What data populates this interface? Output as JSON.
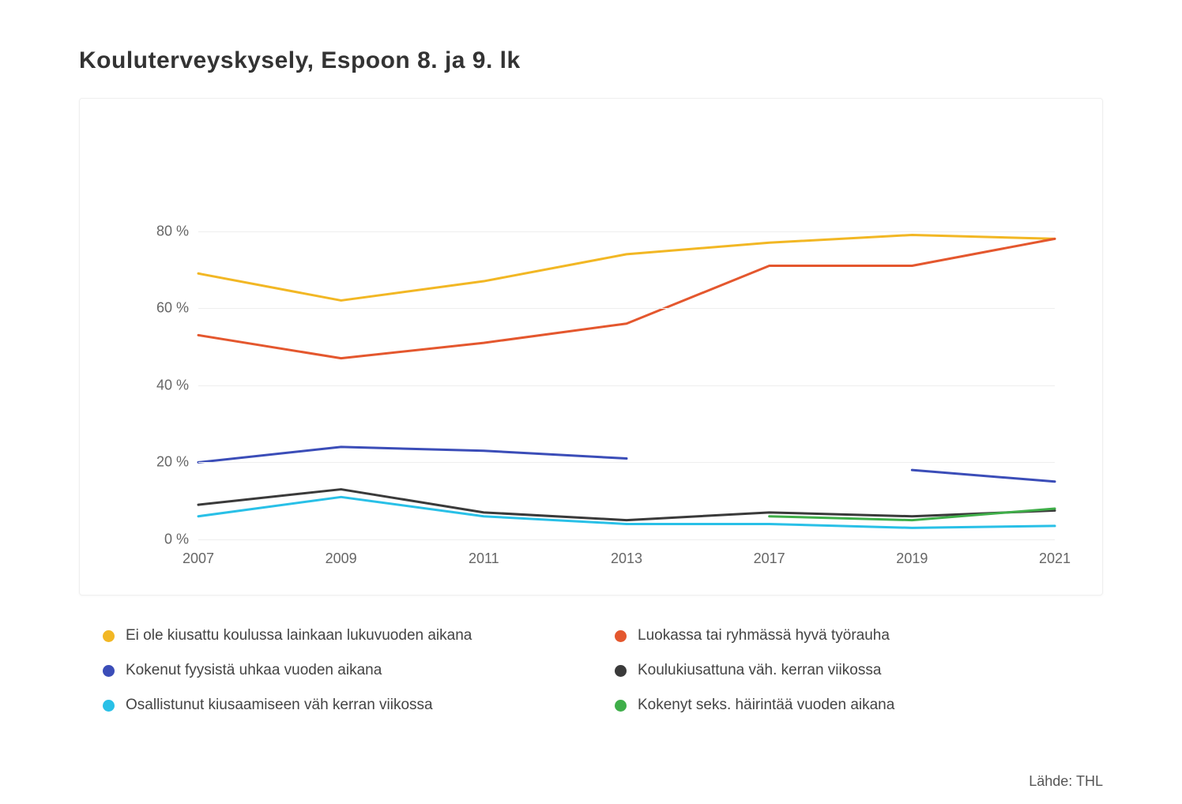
{
  "title": "Kouluterveyskysely, Espoon 8. ja 9. lk",
  "source_label": "Lähde: THL",
  "chart": {
    "type": "line",
    "background_color": "#ffffff",
    "grid_color": "#eeeeee",
    "axis_text_color": "#666666",
    "title_fontsize": 30,
    "label_fontsize": 18,
    "legend_fontsize": 19,
    "line_width": 3,
    "x_categories": [
      "2007",
      "2009",
      "2011",
      "2013",
      "2017",
      "2019",
      "2021"
    ],
    "ylim": [
      0,
      100
    ],
    "yticks": [
      0,
      20,
      40,
      60,
      80
    ],
    "ytick_labels": [
      "0 %",
      "20 %",
      "40 %",
      "60 %",
      "80 %"
    ],
    "series": [
      {
        "id": "ei_kiusattu",
        "label": "Ei ole kiusattu koulussa lainkaan lukuvuoden aikana",
        "color": "#f2b724",
        "values": [
          69,
          62,
          67,
          74,
          77,
          79,
          78
        ]
      },
      {
        "id": "tyorauha",
        "label": "Luokassa tai ryhmässä hyvä työrauha",
        "color": "#e4572e",
        "values": [
          53,
          47,
          51,
          56,
          71,
          71,
          78
        ]
      },
      {
        "id": "fyysinen_uhka",
        "label": "Kokenut fyysistä uhkaa vuoden aikana",
        "color": "#3b4db8",
        "values": [
          20,
          24,
          23,
          21,
          null,
          18,
          15
        ]
      },
      {
        "id": "koulukiusattu",
        "label": "Koulukiusattuna väh. kerran viikossa",
        "color": "#3a3a3a",
        "values": [
          9,
          13,
          7,
          5,
          7,
          6,
          7.5
        ]
      },
      {
        "id": "osallistunut_kiusaamiseen",
        "label": "Osallistunut kiusaamiseen väh kerran viikossa",
        "color": "#29c0e7",
        "values": [
          6,
          11,
          6,
          4,
          4,
          3,
          3.5
        ]
      },
      {
        "id": "seks_hairinta",
        "label": "Kokenyt seks. häirintää vuoden aikana",
        "color": "#3fae49",
        "values": [
          null,
          null,
          null,
          null,
          6,
          5,
          8
        ]
      }
    ],
    "legend_order": [
      "ei_kiusattu",
      "tyorauha",
      "fyysinen_uhka",
      "koulukiusattu",
      "osallistunut_kiusaamiseen",
      "seks_hairinta"
    ]
  }
}
